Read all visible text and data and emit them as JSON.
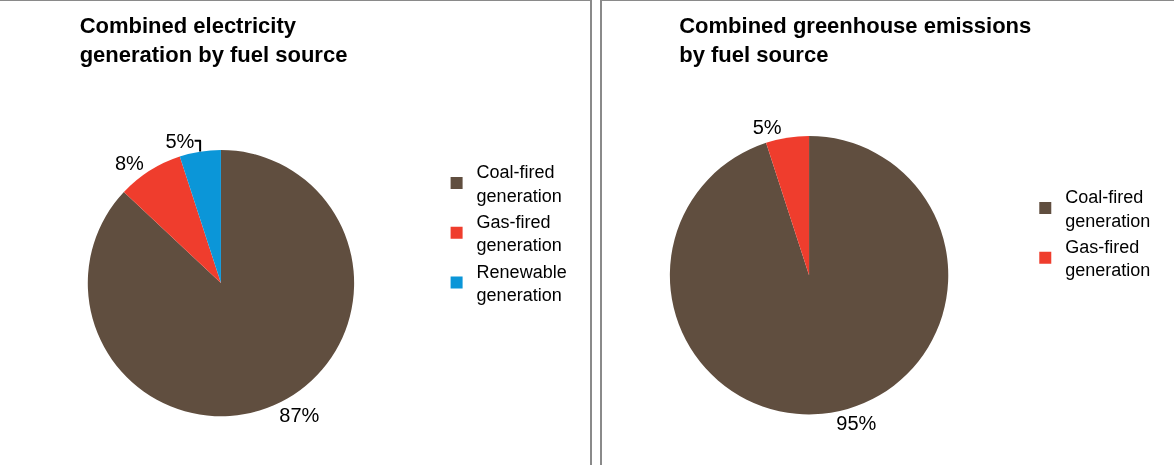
{
  "chart_data": [
    {
      "type": "pie",
      "title": "Combined electricity generation by fuel source",
      "categories": [
        "Coal-fired generation",
        "Gas-fired generation",
        "Renewable generation"
      ],
      "values": [
        87,
        8,
        5
      ],
      "value_labels": [
        "87%",
        "8%",
        "5%"
      ],
      "colors": [
        "#604e3f",
        "#ef3d2d",
        "#0b96d8"
      ],
      "legend": "right"
    },
    {
      "type": "pie",
      "title": "Combined greenhouse emissions by fuel source",
      "categories": [
        "Coal-fired generation",
        "Gas-fired generation"
      ],
      "values": [
        95,
        5
      ],
      "value_labels": [
        "95%",
        "5%"
      ],
      "colors": [
        "#604e3f",
        "#ef3d2d"
      ],
      "legend": "right"
    }
  ]
}
